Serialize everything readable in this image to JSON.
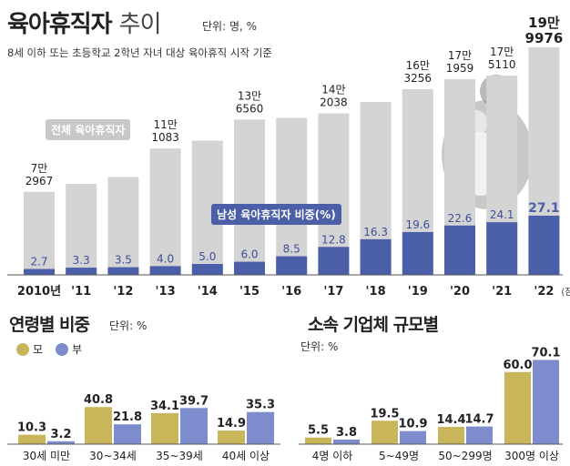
{
  "header": {
    "title_main": "육아휴직자",
    "title_sub": "추이",
    "unit": "단위: 명, %",
    "subtitle": "8세 이하 또는 초등학교 2학년 자녀 대상 육아휴직 시작 기준"
  },
  "callouts": {
    "total": "전체 육아휴직자",
    "male_share": "남성 육아휴직자 비중(%)"
  },
  "colors": {
    "total_bar": "#d4d4d4",
    "male_bar": "#4b5ea8",
    "mother": "#c9b65b",
    "father": "#7d8ccc"
  },
  "chart_data": [
    {
      "type": "bar",
      "title": "육아휴직자 추이",
      "categories": [
        "2010년",
        "'11",
        "'12",
        "'13",
        "'14",
        "'15",
        "'16",
        "'17",
        "'18",
        "'19",
        "'20",
        "'21",
        "'22"
      ],
      "category_note": "(잠정)",
      "series": [
        {
          "name": "전체 육아휴직자",
          "values": [
            72967,
            80000,
            86000,
            111083,
            118000,
            136560,
            138000,
            142038,
            152000,
            163256,
            171959,
            175110,
            199976
          ],
          "labels": [
            [
              "7만",
              "2967"
            ],
            null,
            null,
            [
              "11만",
              "1083"
            ],
            null,
            [
              "13만",
              "6560"
            ],
            null,
            [
              "14만",
              "2038"
            ],
            null,
            [
              "16만",
              "3256"
            ],
            [
              "17만",
              "1959"
            ],
            [
              "17만",
              "5110"
            ],
            [
              "19만",
              "9976"
            ]
          ]
        },
        {
          "name": "남성 육아휴직자 비중(%)",
          "values": [
            2.7,
            3.3,
            3.5,
            4.0,
            5.0,
            6.0,
            8.5,
            12.8,
            16.3,
            19.6,
            22.6,
            24.1,
            27.1
          ]
        }
      ],
      "ylim": [
        0,
        200000
      ]
    },
    {
      "type": "bar",
      "title": "연령별 비중",
      "unit": "단위: %",
      "categories": [
        "30세 미만",
        "30~34세",
        "35~39세",
        "40세 이상"
      ],
      "series": [
        {
          "name": "모",
          "values": [
            10.3,
            40.8,
            34.1,
            14.9
          ]
        },
        {
          "name": "부",
          "values": [
            3.2,
            21.8,
            39.7,
            35.3
          ]
        }
      ],
      "ylim": [
        0,
        70
      ]
    },
    {
      "type": "bar",
      "title": "소속 기업체 규모별",
      "unit": "단위: %",
      "categories": [
        "4명 이하",
        "5~49명",
        "50~299명",
        "300명 이상"
      ],
      "series": [
        {
          "name": "모",
          "values": [
            5.5,
            19.5,
            14.4,
            60.0
          ]
        },
        {
          "name": "부",
          "values": [
            3.8,
            10.9,
            14.7,
            70.1
          ]
        }
      ],
      "ylim": [
        0,
        75
      ]
    }
  ],
  "legend": {
    "mother": "모",
    "father": "부"
  }
}
